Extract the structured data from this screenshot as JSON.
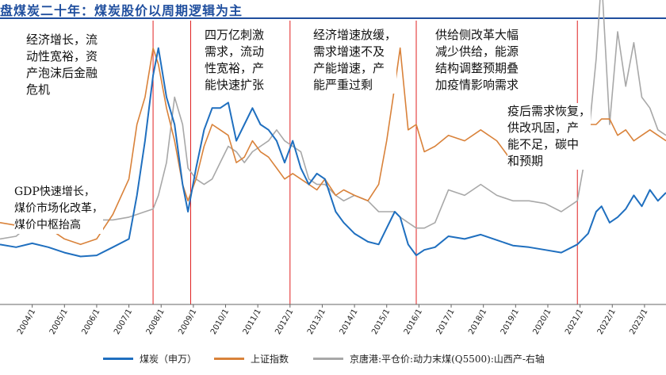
{
  "title": "盘煤炭二十年：煤炭股价以周期逻辑为主",
  "chart_data": {
    "type": "line",
    "x_start": "2003/1",
    "x_end": "2023/9",
    "xticks": [
      "2004/1",
      "2005/1",
      "2006/1",
      "2007/1",
      "2008/1",
      "2009/1",
      "2010/1",
      "2011/1",
      "2012/1",
      "2013/1",
      "2014/1",
      "2015/1",
      "2016/1",
      "2017/1",
      "2018/1",
      "2019/1",
      "2020/1",
      "2021/1",
      "2022/1",
      "2023/1"
    ],
    "yaxis_visible": false,
    "grid": false,
    "legend_position": "bottom",
    "colors": {
      "coal": "#1f6fbf",
      "sse": "#d9823a",
      "price": "#a8a8a8",
      "divider": "#e02020",
      "title": "#1f4e9e"
    },
    "series": [
      {
        "name": "煤炭（申万）",
        "key": "coal",
        "x": [
          "2003/1",
          "2003/7",
          "2004/1",
          "2004/7",
          "2005/1",
          "2005/7",
          "2006/1",
          "2006/7",
          "2007/1",
          "2007/4",
          "2007/7",
          "2007/10",
          "2007/12",
          "2008/3",
          "2008/6",
          "2008/9",
          "2008/11",
          "2009/2",
          "2009/5",
          "2009/8",
          "2009/11",
          "2010/2",
          "2010/5",
          "2010/8",
          "2010/11",
          "2011/2",
          "2011/5",
          "2011/8",
          "2011/11",
          "2012/2",
          "2012/5",
          "2012/8",
          "2012/11",
          "2013/2",
          "2013/6",
          "2013/9",
          "2014/1",
          "2014/6",
          "2014/10",
          "2015/1",
          "2015/4",
          "2015/6",
          "2015/9",
          "2015/12",
          "2016/3",
          "2016/7",
          "2016/12",
          "2017/6",
          "2017/12",
          "2018/6",
          "2018/12",
          "2019/6",
          "2019/12",
          "2020/6",
          "2020/12",
          "2021/4",
          "2021/7",
          "2021/9",
          "2021/12",
          "2022/3",
          "2022/6",
          "2022/9",
          "2022/12",
          "2023/3",
          "2023/6",
          "2023/9"
        ],
        "values": [
          110,
          105,
          112,
          105,
          95,
          88,
          90,
          105,
          120,
          200,
          300,
          420,
          470,
          380,
          330,
          220,
          170,
          250,
          320,
          360,
          360,
          370,
          300,
          330,
          360,
          330,
          320,
          300,
          260,
          300,
          250,
          220,
          240,
          230,
          170,
          150,
          130,
          115,
          110,
          140,
          170,
          160,
          110,
          90,
          100,
          105,
          125,
          120,
          128,
          118,
          108,
          105,
          100,
          95,
          110,
          130,
          170,
          180,
          150,
          160,
          175,
          200,
          180,
          210,
          190,
          205
        ]
      },
      {
        "name": "上证指数",
        "key": "sse",
        "x": [
          "2003/1",
          "2003/7",
          "2004/1",
          "2004/7",
          "2005/1",
          "2005/7",
          "2006/1",
          "2006/7",
          "2007/1",
          "2007/4",
          "2007/7",
          "2007/10",
          "2007/12",
          "2008/3",
          "2008/6",
          "2008/9",
          "2008/11",
          "2009/2",
          "2009/5",
          "2009/8",
          "2009/11",
          "2010/2",
          "2010/5",
          "2010/8",
          "2010/11",
          "2011/2",
          "2011/5",
          "2011/8",
          "2011/11",
          "2012/2",
          "2012/5",
          "2012/8",
          "2012/11",
          "2013/2",
          "2013/6",
          "2013/9",
          "2014/1",
          "2014/6",
          "2014/10",
          "2015/1",
          "2015/4",
          "2015/6",
          "2015/9",
          "2015/12",
          "2016/3",
          "2016/7",
          "2016/12",
          "2017/6",
          "2017/12",
          "2018/6",
          "2018/12",
          "2019/6",
          "2019/12",
          "2020/6",
          "2020/12",
          "2021/4",
          "2021/7",
          "2021/9",
          "2021/12",
          "2022/3",
          "2022/6",
          "2022/9",
          "2022/12",
          "2023/3",
          "2023/6",
          "2023/9"
        ],
        "values": [
          150,
          145,
          165,
          140,
          120,
          110,
          120,
          165,
          230,
          330,
          380,
          470,
          440,
          360,
          300,
          220,
          190,
          230,
          290,
          330,
          320,
          310,
          260,
          270,
          300,
          280,
          270,
          250,
          230,
          240,
          230,
          220,
          210,
          230,
          200,
          210,
          200,
          190,
          220,
          300,
          400,
          470,
          320,
          330,
          280,
          290,
          310,
          300,
          320,
          300,
          260,
          280,
          290,
          300,
          330,
          330,
          330,
          340,
          340,
          310,
          320,
          300,
          310,
          320,
          310,
          300
        ]
      },
      {
        "name": "京唐港:平仓价:动力末煤(Q5500):山西产-右轴",
        "key": "price",
        "x": [
          "2003/1",
          "2003/7",
          "2004/1",
          "2004/7",
          "2005/1",
          "2005/7",
          "2006/1",
          "2006/7",
          "2007/1",
          "2007/4",
          "2007/7",
          "2007/10",
          "2007/12",
          "2008/3",
          "2008/6",
          "2008/9",
          "2008/11",
          "2009/2",
          "2009/5",
          "2009/8",
          "2009/11",
          "2010/2",
          "2010/5",
          "2010/8",
          "2010/11",
          "2011/2",
          "2011/5",
          "2011/8",
          "2011/11",
          "2012/2",
          "2012/5",
          "2012/8",
          "2012/11",
          "2013/2",
          "2013/6",
          "2013/9",
          "2014/1",
          "2014/6",
          "2014/10",
          "2015/1",
          "2015/4",
          "2015/6",
          "2015/9",
          "2015/12",
          "2016/3",
          "2016/7",
          "2016/12",
          "2017/6",
          "2017/12",
          "2018/6",
          "2018/12",
          "2019/6",
          "2019/12",
          "2020/6",
          "2020/12",
          "2021/4",
          "2021/7",
          "2021/9",
          "2021/12",
          "2022/3",
          "2022/6",
          "2022/9",
          "2022/12",
          "2023/3",
          "2023/6",
          "2023/9"
        ],
        "values": [
          120,
          125,
          150,
          160,
          165,
          155,
          155,
          155,
          160,
          165,
          170,
          175,
          200,
          260,
          380,
          330,
          250,
          230,
          220,
          230,
          260,
          290,
          280,
          260,
          280,
          290,
          300,
          320,
          300,
          290,
          280,
          230,
          220,
          220,
          200,
          190,
          200,
          190,
          170,
          170,
          170,
          160,
          150,
          140,
          140,
          150,
          210,
          200,
          220,
          200,
          190,
          190,
          185,
          170,
          190,
          300,
          450,
          600,
          330,
          500,
          400,
          480,
          380,
          360,
          320,
          310
        ]
      }
    ],
    "dividers": [
      "2007/10",
      "2008/12",
      "2012/1",
      "2015/12",
      "2020/12"
    ]
  },
  "annotations": [
    {
      "key": "a1",
      "text": "经济增长，流\n动性宽裕，资\n产泡沫后金融\n危机"
    },
    {
      "key": "a2",
      "text": "GDP快速增长，\n煤价市场化改革，\n煤价中枢抬高"
    },
    {
      "key": "a3",
      "text": "四万亿刺激\n需求，流动\n性宽裕，产\n能快速扩张"
    },
    {
      "key": "a4",
      "text": "经济增速放缓，\n需求增速不及\n产能增速，产\n能严重过剩"
    },
    {
      "key": "a5",
      "text": "供给侧改革大幅\n减少供给，能源\n结构调整预期叠\n加疫情影响需求"
    },
    {
      "key": "a6",
      "text": "疫后需求恢复，\n供改巩固，产\n能不足，碳中\n和预期"
    }
  ]
}
